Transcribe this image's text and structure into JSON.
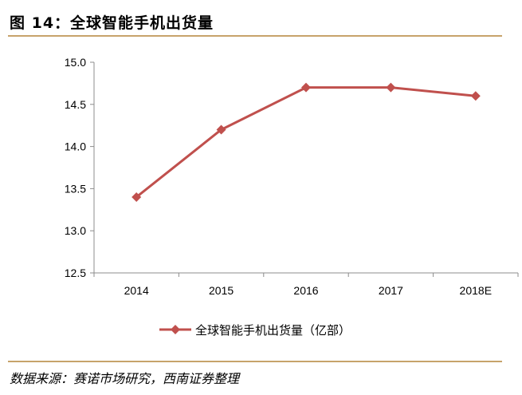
{
  "figure": {
    "title": "图 14：全球智能手机出货量",
    "source": "数据来源：赛诺市场研究，西南证券整理"
  },
  "chart_data": {
    "type": "line",
    "categories": [
      "2014",
      "2015",
      "2016",
      "2017",
      "2018E"
    ],
    "series": [
      {
        "name": "全球智能手机出货量（亿部）",
        "values": [
          13.4,
          14.2,
          14.7,
          14.7,
          14.6
        ],
        "color": "#c0504d"
      }
    ],
    "ylim": [
      12.5,
      15.0
    ],
    "yticks": [
      "12.5",
      "13.0",
      "13.5",
      "14.0",
      "14.5",
      "15.0"
    ],
    "grid": false,
    "legend_position": "bottom"
  }
}
